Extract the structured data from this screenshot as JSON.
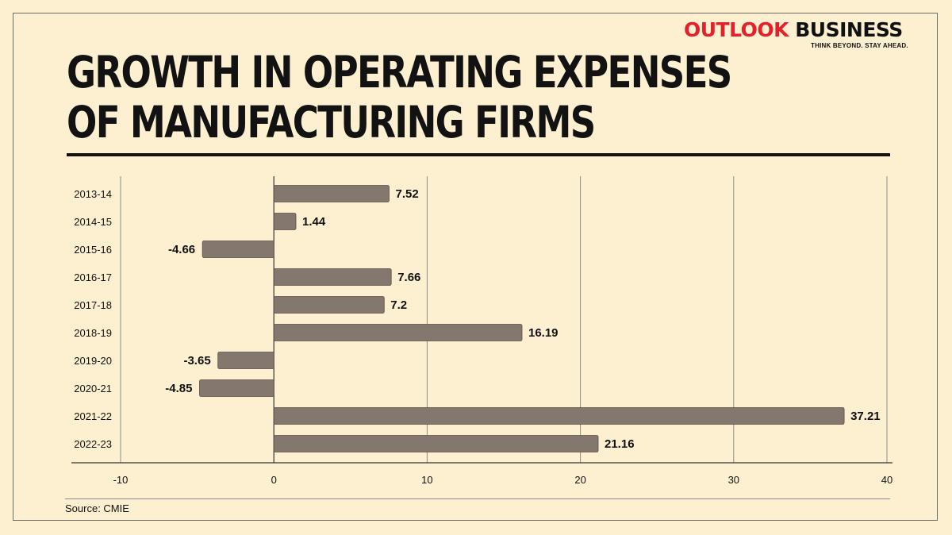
{
  "brand": {
    "name_part1": "OUTLOOK",
    "name_part2": "BUSINESS",
    "tagline": "THINK BEYOND. STAY AHEAD.",
    "accent_color": "#e5202a"
  },
  "source": "Source: CMIE",
  "chart_data": {
    "type": "bar",
    "orientation": "horizontal",
    "title": "GROWTH IN OPERATING EXPENSES OF MANUFACTURING FIRMS",
    "title_lines": [
      "GROWTH IN OPERATING EXPENSES",
      "OF MANUFACTURING FIRMS"
    ],
    "categories": [
      "2013-14",
      "2014-15",
      "2015-16",
      "2016-17",
      "2017-18",
      "2018-19",
      "2019-20",
      "2020-21",
      "2021-22",
      "2022-23"
    ],
    "values": [
      7.52,
      1.44,
      -4.66,
      7.66,
      7.2,
      16.19,
      -3.65,
      -4.85,
      37.21,
      21.16
    ],
    "value_labels": [
      "7.52",
      "1.44",
      "-4.66",
      "7.66",
      "7.2",
      "16.19",
      "-3.65",
      "-4.85",
      "37.21",
      "21.16"
    ],
    "xlim": [
      -10,
      40
    ],
    "xticks": [
      "-10",
      "0",
      "10",
      "20",
      "30",
      "40"
    ],
    "xlabel": "",
    "ylabel": "",
    "grid": true,
    "bar_color": "#84776d",
    "bar_edge_color": "#5a4f48"
  }
}
